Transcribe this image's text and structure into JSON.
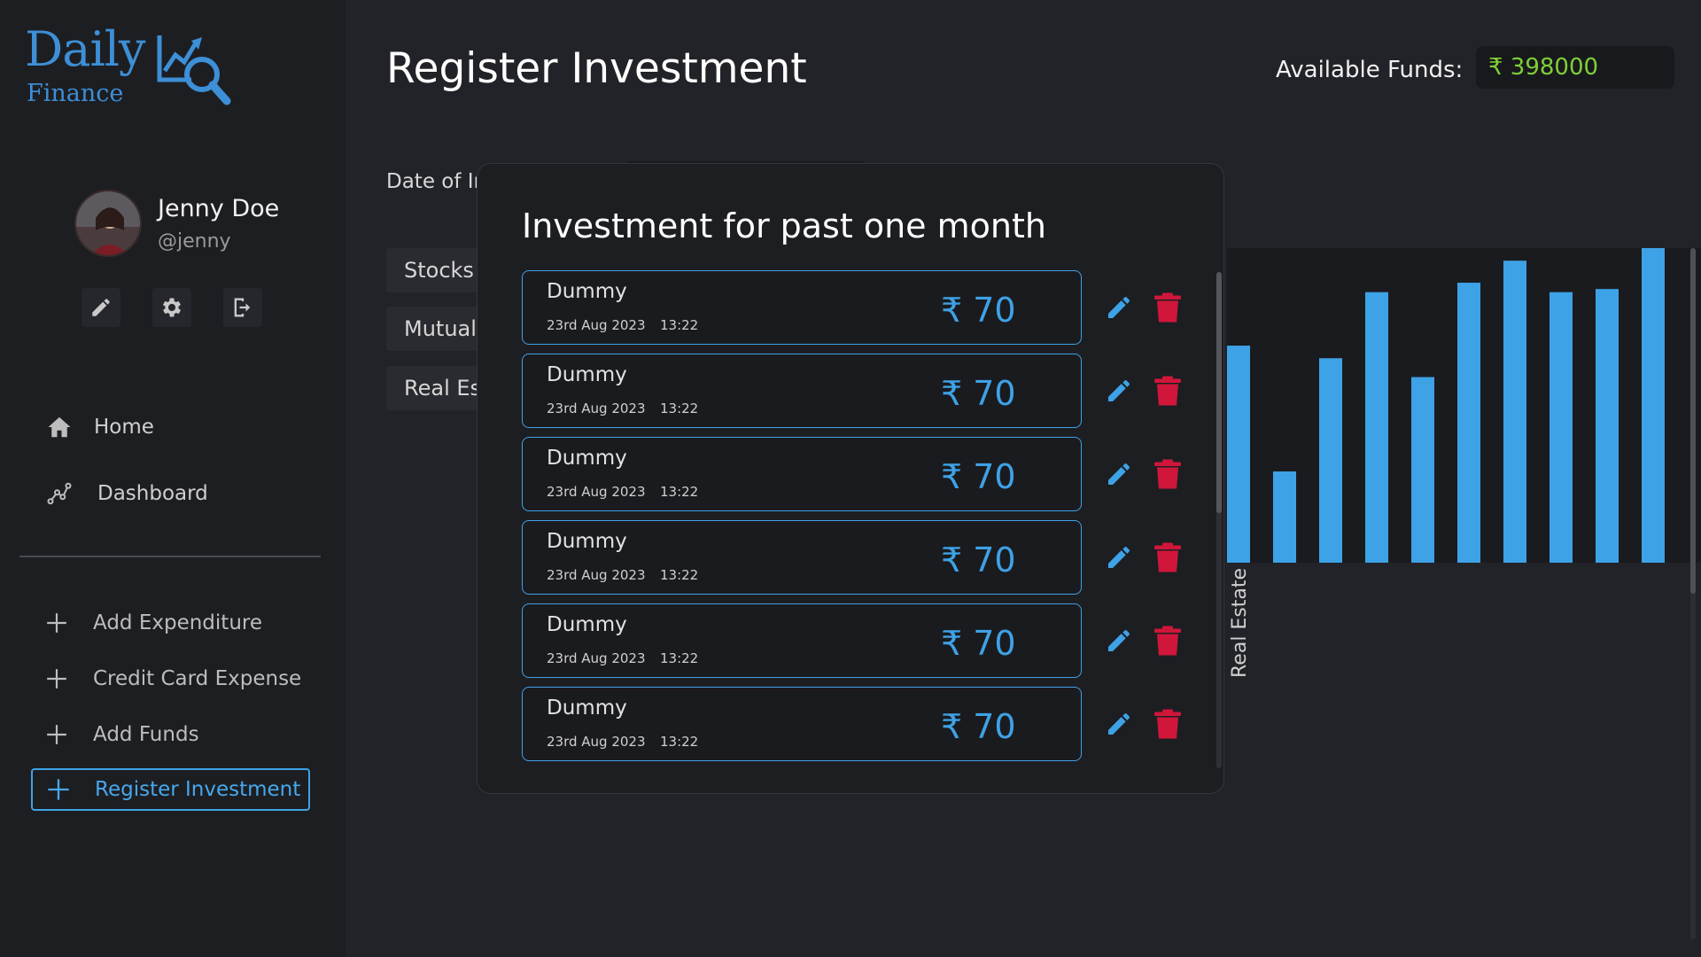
{
  "brand": {
    "name_top": "Daily",
    "name_bottom": "Finance",
    "color": "#3d8fd6"
  },
  "profile": {
    "name": "Jenny Doe",
    "handle": "@jenny",
    "actions": [
      "pencil-icon",
      "gear-icon",
      "logout-icon"
    ]
  },
  "nav": {
    "items": [
      {
        "label": "Home",
        "icon": "home-icon"
      },
      {
        "label": "Dashboard",
        "icon": "chart-line-icon"
      }
    ]
  },
  "actions": {
    "items": [
      {
        "label": "Add Expenditure",
        "active": false
      },
      {
        "label": "Credit Card Expense",
        "active": false
      },
      {
        "label": "Add Funds",
        "active": false
      },
      {
        "label": "Register Investment",
        "active": true
      }
    ]
  },
  "header": {
    "title": "Register Investment",
    "funds_label": "Available Funds:",
    "funds_value": "₹ 398000",
    "funds_color": "#7fcf34"
  },
  "form": {
    "date_label": "Date of Ir",
    "types": [
      "Stocks",
      "Mutual",
      "Real Es"
    ]
  },
  "chart_data": {
    "type": "bar",
    "bar_color": "#3ea2e6",
    "visible_label": "Real Estate",
    "values": [
      0.69,
      0.29,
      0.65,
      0.86,
      0.59,
      0.89,
      0.96,
      0.86,
      0.87,
      1.0
    ]
  },
  "modal": {
    "title": "Investment for past one month",
    "items": [
      {
        "name": "Dummy",
        "date": "23rd Aug 2023",
        "time": "13:22",
        "amount": "₹ 70"
      },
      {
        "name": "Dummy",
        "date": "23rd Aug 2023",
        "time": "13:22",
        "amount": "₹ 70"
      },
      {
        "name": "Dummy",
        "date": "23rd Aug 2023",
        "time": "13:22",
        "amount": "₹ 70"
      },
      {
        "name": "Dummy",
        "date": "23rd Aug 2023",
        "time": "13:22",
        "amount": "₹ 70"
      },
      {
        "name": "Dummy",
        "date": "23rd Aug 2023",
        "time": "13:22",
        "amount": "₹ 70"
      },
      {
        "name": "Dummy",
        "date": "23rd Aug 2023",
        "time": "13:22",
        "amount": "₹ 70"
      }
    ],
    "accent": "#3ea2e6",
    "delete_color": "#d0163a"
  }
}
